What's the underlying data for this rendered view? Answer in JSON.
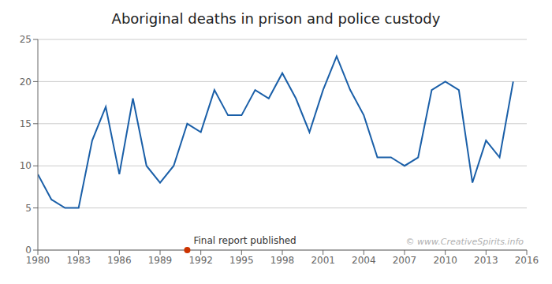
{
  "chart_data": {
    "type": "line",
    "title": "Aboriginal deaths in prison and police custody",
    "x": [
      1980,
      1981,
      1982,
      1983,
      1984,
      1985,
      1986,
      1987,
      1988,
      1989,
      1990,
      1991,
      1992,
      1993,
      1994,
      1995,
      1996,
      1997,
      1998,
      1999,
      2000,
      2001,
      2002,
      2003,
      2004,
      2005,
      2006,
      2007,
      2008,
      2009,
      2010,
      2011,
      2012,
      2013,
      2014,
      2015
    ],
    "values": [
      9,
      6,
      5,
      5,
      13,
      17,
      9,
      18,
      10,
      8,
      10,
      15,
      14,
      19,
      16,
      16,
      19,
      18,
      21,
      18,
      14,
      19,
      23,
      19,
      16,
      11,
      11,
      10,
      11,
      19,
      20,
      19,
      8,
      13,
      11,
      20
    ],
    "color": "#1a5fa8",
    "xlim": [
      1980,
      2016
    ],
    "ylim": [
      0,
      25
    ],
    "xticks": [
      1980,
      1983,
      1986,
      1989,
      1992,
      1995,
      1998,
      2001,
      2004,
      2007,
      2010,
      2013,
      2016
    ],
    "yticks": [
      0,
      5,
      10,
      15,
      20,
      25
    ],
    "grid": true,
    "annotations": [
      {
        "text": "Final report published",
        "x": 1991,
        "y": 0,
        "color": "#cc3300"
      },
      {
        "text": "© www.CreativeSpirits.info",
        "color": "#b0b0b0"
      }
    ]
  }
}
